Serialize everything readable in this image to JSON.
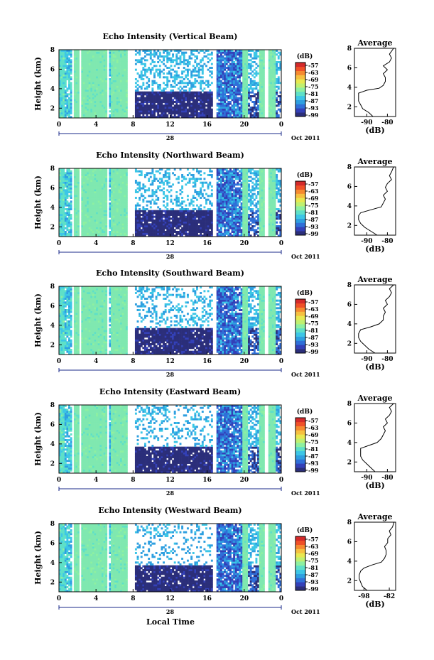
{
  "figure": {
    "xlabel": "Local Time",
    "date_label": "Oct 2011",
    "day_label": "28"
  },
  "colorbar": {
    "unit_label": "(dB)",
    "ticks": [
      "-57",
      "-63",
      "-69",
      "-75",
      "-81",
      "-87",
      "-93",
      "-99"
    ],
    "colors": [
      "#2b2e7a",
      "#3340b8",
      "#2f6fd8",
      "#2e9fe0",
      "#3cc6e6",
      "#5ee0c8",
      "#8ef0a0",
      "#c0f070",
      "#e8e850",
      "#f6c040",
      "#f68a30",
      "#f05028",
      "#d42a2a"
    ]
  },
  "chart_data": [
    {
      "type": "heatmap",
      "title": "Echo Intensity (Vertical Beam)",
      "ylabel": "Height (km)",
      "xticks": [
        "0",
        "4",
        "8",
        "12",
        "16",
        "20",
        "0"
      ],
      "yticks": [
        "2",
        "4",
        "6",
        "8"
      ],
      "xlim": [
        0,
        24
      ],
      "ylim": [
        1,
        8
      ],
      "avg": {
        "title": "Average",
        "xlabel": "(dB)",
        "xticks": [
          "-90",
          "-80"
        ],
        "yticks": [
          "2",
          "4",
          "6",
          "8"
        ],
        "xlim": [
          -96,
          -76
        ],
        "ylim": [
          1,
          8
        ],
        "profile": [
          [
            1.0,
            -87
          ],
          [
            1.4,
            -89
          ],
          [
            1.8,
            -92
          ],
          [
            2.2,
            -93
          ],
          [
            2.6,
            -94
          ],
          [
            3.0,
            -94
          ],
          [
            3.4,
            -94
          ],
          [
            3.7,
            -90
          ],
          [
            3.9,
            -84
          ],
          [
            4.2,
            -82
          ],
          [
            4.6,
            -81
          ],
          [
            5.0,
            -81
          ],
          [
            5.4,
            -82
          ],
          [
            5.8,
            -80
          ],
          [
            6.2,
            -82
          ],
          [
            6.6,
            -79
          ],
          [
            7.0,
            -78
          ],
          [
            7.4,
            -79
          ],
          [
            8.0,
            -77
          ]
        ]
      }
    },
    {
      "type": "heatmap",
      "title": "Echo Intensity (Northward Beam)",
      "ylabel": "Height (km)",
      "xticks": [
        "0",
        "4",
        "8",
        "12",
        "16",
        "20",
        "0"
      ],
      "yticks": [
        "2",
        "4",
        "6",
        "8"
      ],
      "xlim": [
        0,
        24
      ],
      "ylim": [
        1,
        8
      ],
      "avg": {
        "title": "Average",
        "xlabel": "(dB)",
        "xticks": [
          "-90",
          "-80"
        ],
        "yticks": [
          "2",
          "4",
          "6",
          "8"
        ],
        "xlim": [
          -96,
          -76
        ],
        "ylim": [
          1,
          8
        ],
        "profile": [
          [
            1.0,
            -85
          ],
          [
            1.4,
            -88
          ],
          [
            1.8,
            -91
          ],
          [
            2.2,
            -93
          ],
          [
            2.6,
            -94
          ],
          [
            3.0,
            -94
          ],
          [
            3.3,
            -93
          ],
          [
            3.6,
            -88
          ],
          [
            3.9,
            -83
          ],
          [
            4.3,
            -82
          ],
          [
            4.7,
            -81
          ],
          [
            5.1,
            -82
          ],
          [
            5.5,
            -80
          ],
          [
            5.9,
            -81
          ],
          [
            6.3,
            -80
          ],
          [
            6.7,
            -78
          ],
          [
            7.1,
            -79
          ],
          [
            7.5,
            -78
          ],
          [
            8.0,
            -77
          ]
        ]
      }
    },
    {
      "type": "heatmap",
      "title": "Echo Intensity (Southward Beam)",
      "ylabel": "Height (km)",
      "xticks": [
        "0",
        "4",
        "8",
        "12",
        "16",
        "20",
        "0"
      ],
      "yticks": [
        "2",
        "4",
        "6",
        "8"
      ],
      "xlim": [
        0,
        24
      ],
      "ylim": [
        1,
        8
      ],
      "avg": {
        "title": "Average",
        "xlabel": "(dB)",
        "xticks": [
          "-90",
          "-80"
        ],
        "yticks": [
          "2",
          "4",
          "6",
          "8"
        ],
        "xlim": [
          -96,
          -76
        ],
        "ylim": [
          1,
          8
        ],
        "profile": [
          [
            1.0,
            -86
          ],
          [
            1.4,
            -89
          ],
          [
            1.8,
            -91
          ],
          [
            2.2,
            -93
          ],
          [
            2.6,
            -94
          ],
          [
            3.0,
            -94
          ],
          [
            3.4,
            -93
          ],
          [
            3.7,
            -88
          ],
          [
            4.0,
            -84
          ],
          [
            4.4,
            -82
          ],
          [
            4.8,
            -82
          ],
          [
            5.2,
            -81
          ],
          [
            5.6,
            -82
          ],
          [
            6.0,
            -80
          ],
          [
            6.4,
            -81
          ],
          [
            6.8,
            -79
          ],
          [
            7.2,
            -78
          ],
          [
            7.6,
            -79
          ],
          [
            8.0,
            -77
          ]
        ]
      }
    },
    {
      "type": "heatmap",
      "title": "Echo Intensity (Eastward Beam)",
      "ylabel": "Height (km)",
      "xticks": [
        "0",
        "4",
        "8",
        "12",
        "16",
        "20",
        "0"
      ],
      "yticks": [
        "2",
        "4",
        "6",
        "8"
      ],
      "xlim": [
        0,
        24
      ],
      "ylim": [
        1,
        8
      ],
      "avg": {
        "title": "Average",
        "xlabel": "(dB)",
        "xticks": [
          "-90",
          "-80"
        ],
        "yticks": [
          "2",
          "4",
          "6",
          "8"
        ],
        "xlim": [
          -96,
          -76
        ],
        "ylim": [
          1,
          8
        ],
        "profile": [
          [
            1.0,
            -86
          ],
          [
            1.4,
            -88
          ],
          [
            1.8,
            -90
          ],
          [
            2.2,
            -92
          ],
          [
            2.6,
            -93
          ],
          [
            3.0,
            -93
          ],
          [
            3.4,
            -93
          ],
          [
            3.7,
            -89
          ],
          [
            4.0,
            -85
          ],
          [
            4.4,
            -83
          ],
          [
            4.8,
            -82
          ],
          [
            5.2,
            -81
          ],
          [
            5.6,
            -82
          ],
          [
            6.0,
            -80
          ],
          [
            6.4,
            -81
          ],
          [
            6.8,
            -79
          ],
          [
            7.2,
            -78
          ],
          [
            7.6,
            -79
          ],
          [
            8.0,
            -77
          ]
        ]
      }
    },
    {
      "type": "heatmap",
      "title": "Echo Intensity (Westward Beam)",
      "ylabel": "Height (km)",
      "xticks": [
        "0",
        "4",
        "8",
        "12",
        "16",
        "20",
        "0"
      ],
      "yticks": [
        "2",
        "4",
        "6",
        "8"
      ],
      "xlim": [
        0,
        24
      ],
      "ylim": [
        1,
        8
      ],
      "avg": {
        "title": "Average",
        "xlabel": "(dB)",
        "xticks": [
          "-98",
          "-82"
        ],
        "yticks": [
          "2",
          "4",
          "6",
          "8"
        ],
        "xlim": [
          -104,
          -78
        ],
        "ylim": [
          1,
          8
        ],
        "profile": [
          [
            1.0,
            -96
          ],
          [
            1.4,
            -99
          ],
          [
            1.8,
            -100
          ],
          [
            2.2,
            -101
          ],
          [
            2.6,
            -101
          ],
          [
            3.0,
            -100
          ],
          [
            3.3,
            -98
          ],
          [
            3.6,
            -93
          ],
          [
            3.9,
            -87
          ],
          [
            4.3,
            -85
          ],
          [
            4.7,
            -84
          ],
          [
            5.1,
            -84
          ],
          [
            5.5,
            -85
          ],
          [
            5.9,
            -83
          ],
          [
            6.3,
            -83
          ],
          [
            6.7,
            -81
          ],
          [
            7.1,
            -82
          ],
          [
            7.5,
            -80
          ],
          [
            8.0,
            -79
          ]
        ]
      }
    }
  ]
}
